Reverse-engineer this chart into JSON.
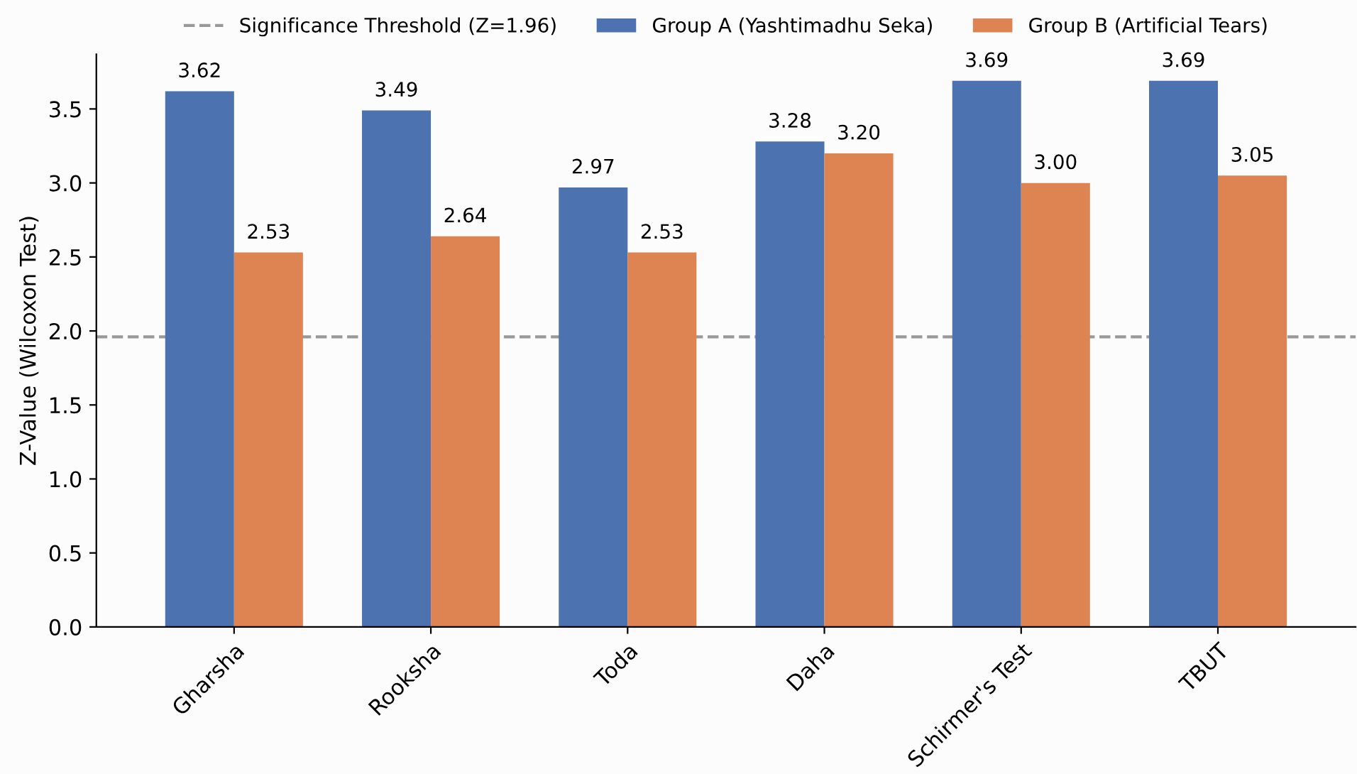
{
  "chart_data": {
    "type": "bar",
    "ylabel": "Z-Value (Wilcoxon Test)",
    "categories": [
      "Gharsha",
      "Rooksha",
      "Toda",
      "Daha",
      "Schirmer's Test",
      "TBUT"
    ],
    "series": [
      {
        "name": "Group A (Yashtimadhu Seka)",
        "color": "#4c72b0",
        "values": [
          3.62,
          3.49,
          2.97,
          3.28,
          3.69,
          3.69
        ],
        "value_labels": [
          "3.62",
          "3.49",
          "2.97",
          "3.28",
          "3.69",
          "3.69"
        ]
      },
      {
        "name": "Group B (Artificial Tears)",
        "color": "#dd8452",
        "values": [
          2.53,
          2.64,
          2.53,
          3.2,
          3.0,
          3.05
        ],
        "value_labels": [
          "2.53",
          "2.64",
          "2.53",
          "3.20",
          "3.00",
          "3.05"
        ]
      }
    ],
    "ylim": [
      0,
      3.87
    ],
    "yticks": [
      {
        "value": 0,
        "label": "0.0"
      },
      0.5,
      {
        "value": 1,
        "label": "1.0"
      },
      1.5,
      {
        "value": 2,
        "label": "2.0"
      },
      2.5,
      {
        "value": 3,
        "label": "3.0"
      },
      3.5
    ],
    "ref_lines": [
      {
        "axis": "y",
        "value": 1.96,
        "label": "Significance Threshold (Z=1.96)",
        "color": "#999999",
        "line_style": "dashed"
      }
    ],
    "legend": "top",
    "grid": false
  }
}
